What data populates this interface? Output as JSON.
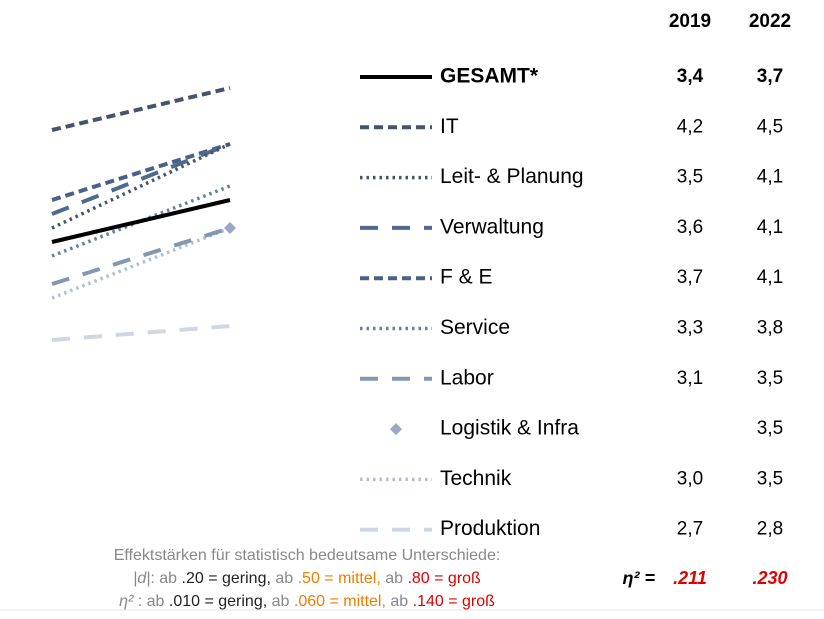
{
  "chart_data": {
    "type": "line",
    "x": [
      "2019",
      "2022"
    ],
    "ylim": [
      2.5,
      4.7
    ],
    "series": [
      {
        "name": "GESAMT*",
        "color": "#000000",
        "dash": "solid",
        "width": 4,
        "bold": true,
        "values": [
          3.4,
          3.7
        ],
        "value_labels": [
          "3,4",
          "3,7"
        ]
      },
      {
        "name": "IT",
        "color": "#44546a",
        "dash": "dash",
        "width": 4,
        "values": [
          4.2,
          4.5
        ],
        "value_labels": [
          "4,2",
          "4,5"
        ]
      },
      {
        "name": "Leit- & Planung",
        "color": "#44546a",
        "dash": "dot",
        "width": 3.5,
        "values": [
          3.5,
          4.1
        ],
        "value_labels": [
          "3,5",
          "4,1"
        ]
      },
      {
        "name": "Verwaltung",
        "color": "#4f6a8f",
        "dash": "longdash",
        "width": 4,
        "values": [
          3.6,
          4.1
        ],
        "value_labels": [
          "3,6",
          "4,1"
        ]
      },
      {
        "name": " F & E",
        "color": "#4a6089",
        "dash": "dash",
        "width": 4,
        "values": [
          3.7,
          4.1
        ],
        "value_labels": [
          "3,7",
          "4,1"
        ]
      },
      {
        "name": "Service",
        "color": "#6a7ea0",
        "dash": "dot",
        "width": 3.5,
        "values": [
          3.3,
          3.8
        ],
        "value_labels": [
          "3,3",
          "3,8"
        ]
      },
      {
        "name": "Labor",
        "color": "#8497b0",
        "dash": "longdash",
        "width": 4,
        "values": [
          3.1,
          3.5
        ],
        "value_labels": [
          "3,1",
          "3,5"
        ]
      },
      {
        "name": "Logistik & Infra",
        "color": "#9aa8c4",
        "dash": "none",
        "marker": "diamond",
        "width": 4,
        "values": [
          null,
          3.5
        ],
        "value_labels": [
          null,
          "3,5"
        ]
      },
      {
        "name": "Technik",
        "color": "#b4bfd4",
        "dash": "dot",
        "width": 3.5,
        "values": [
          3.0,
          3.5
        ],
        "value_labels": [
          "3,0",
          "3,5"
        ]
      },
      {
        "name": "Produktion",
        "color": "#d0d7e3",
        "dash": "longdash",
        "width": 4,
        "values": [
          2.7,
          2.8
        ],
        "value_labels": [
          "2,7",
          "2,8"
        ]
      }
    ],
    "effect_size": {
      "label": "η² =",
      "values": [
        0.211,
        0.23
      ],
      "value_labels": [
        ".211",
        ".230"
      ],
      "color": "#e00000"
    },
    "footnote": [
      [
        {
          "text": "Effektstärken für statistisch bedeutsame Unterschiede:",
          "color": "#888888"
        }
      ],
      [
        {
          "text": "|d|",
          "color": "#888888",
          "italic": true
        },
        {
          "text": ": ab ",
          "color": "#888888"
        },
        {
          "text": ".20 = gering, ",
          "color": "#222222"
        },
        {
          "text": "ab ",
          "color": "#888888"
        },
        {
          "text": ".50 = mittel, ",
          "color": "#f07d00"
        },
        {
          "text": "ab ",
          "color": "#888888"
        },
        {
          "text": ".80 = groß",
          "color": "#e00000"
        }
      ],
      [
        {
          "text": "η²",
          "color": "#888888",
          "italic": true
        },
        {
          "text": " : ab ",
          "color": "#888888"
        },
        {
          "text": ".010 = gering, ",
          "color": "#222222"
        },
        {
          "text": "ab ",
          "color": "#888888"
        },
        {
          "text": ".060 = mittel, ",
          "color": "#f07d00"
        },
        {
          "text": "ab ",
          "color": "#888888"
        },
        {
          "text": ".140 = groß",
          "color": "#e00000"
        }
      ]
    ]
  }
}
